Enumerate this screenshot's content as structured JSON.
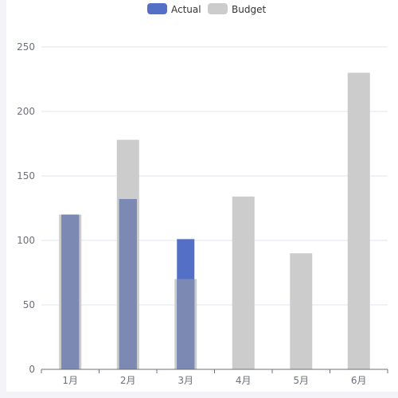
{
  "chart_data": {
    "type": "bar",
    "categories": [
      "1月",
      "2月",
      "3月",
      "4月",
      "5月",
      "6月"
    ],
    "series": [
      {
        "name": "Budget",
        "values": [
          120,
          178,
          70,
          134,
          90,
          230
        ],
        "color": "#cccccc"
      },
      {
        "name": "Actual",
        "values": [
          120,
          132,
          101,
          null,
          null,
          null
        ],
        "color": "#5470c6"
      }
    ],
    "overlap_color": "#7b89b3",
    "ylim": [
      0,
      250
    ],
    "yticks": [
      0,
      50,
      100,
      150,
      200,
      250
    ],
    "grid": true,
    "legend": {
      "position": "top-center",
      "entries": [
        {
          "name": "Actual",
          "color": "#5470c6"
        },
        {
          "name": "Budget",
          "color": "#cccccc"
        }
      ]
    }
  }
}
